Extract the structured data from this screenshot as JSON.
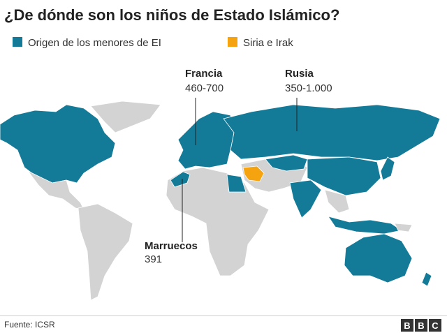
{
  "header": {
    "title": "¿De dónde son los niños de Estado Islámico?"
  },
  "legend": {
    "items": [
      {
        "label": "Origen de los menores de EI",
        "color": "#137a98"
      },
      {
        "label": "Siria e Irak",
        "color": "#f5a30f"
      }
    ]
  },
  "callouts": [
    {
      "name": "Francia",
      "value": "460-700"
    },
    {
      "name": "Rusia",
      "value": "350-1.000"
    },
    {
      "name": "Marruecos",
      "value": "391"
    }
  ],
  "footer": {
    "source": "Fuente: ICSR",
    "logo": [
      "B",
      "B",
      "C"
    ]
  }
}
